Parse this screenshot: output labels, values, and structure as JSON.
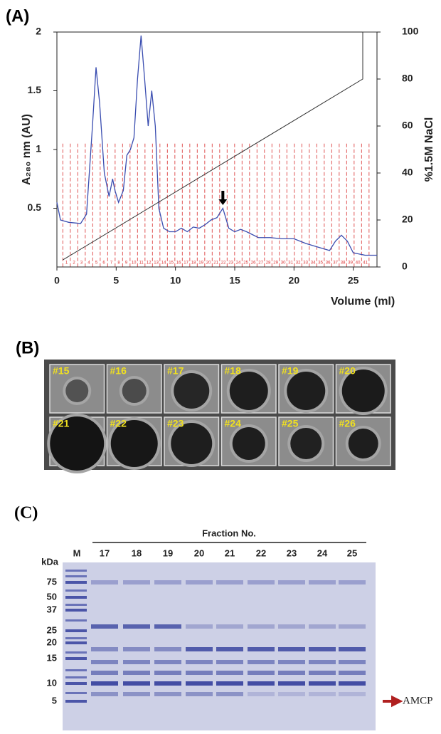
{
  "chart_data": {
    "type": "line",
    "panel_label": "(A)",
    "xlabel": "Volume (ml)",
    "ylabel": "A₂₈₀ nm (AU)",
    "y2label": "%1.5M NaCl",
    "xlim": [
      0,
      27
    ],
    "xticks": [
      0,
      5,
      10,
      15,
      20,
      25
    ],
    "ylim": [
      0,
      2
    ],
    "yticks": [
      0.5,
      1,
      1.5,
      2
    ],
    "y2lim": [
      0,
      100
    ],
    "y2ticks": [
      0,
      20,
      40,
      60,
      80,
      100
    ],
    "series": [
      {
        "color": "#3a4db0",
        "x": [
          0,
          0.3,
          1,
          2,
          2.5,
          3,
          3.3,
          3.6,
          4,
          4.4,
          4.7,
          4.9,
          5.2,
          5.6,
          5.9,
          6.2,
          6.5,
          6.8,
          7.1,
          7.4,
          7.7,
          8.0,
          8.3,
          8.6,
          9,
          9.5,
          10,
          10.5,
          11,
          11.5,
          12,
          12.5,
          13,
          13.5,
          14,
          14.5,
          15,
          15.5,
          16,
          17,
          18,
          19,
          20,
          21,
          22,
          23,
          23.5,
          24,
          24.5,
          25,
          26,
          27
        ],
        "values": [
          0.55,
          0.4,
          0.38,
          0.37,
          0.45,
          1.2,
          1.7,
          1.4,
          0.8,
          0.6,
          0.75,
          0.65,
          0.55,
          0.65,
          0.95,
          1.0,
          1.1,
          1.6,
          1.97,
          1.6,
          1.2,
          1.5,
          1.2,
          0.5,
          0.33,
          0.3,
          0.3,
          0.33,
          0.3,
          0.34,
          0.33,
          0.36,
          0.4,
          0.42,
          0.5,
          0.33,
          0.3,
          0.32,
          0.3,
          0.25,
          0.25,
          0.24,
          0.24,
          0.2,
          0.17,
          0.14,
          0.22,
          0.27,
          0.22,
          0.12,
          0.1,
          0.1
        ]
      },
      {
        "color": "#333333",
        "axis": "y2",
        "x": [
          0.5,
          25.8,
          25.8,
          27
        ],
        "values": [
          3,
          80,
          100,
          100
        ]
      }
    ],
    "fraction_bins": [
      0.5,
      1.13,
      1.76,
      2.39,
      3.02,
      3.65,
      4.28,
      4.91,
      5.54,
      6.17,
      6.8,
      7.43,
      8.06,
      8.69,
      9.32,
      9.95,
      10.58,
      11.21,
      11.84,
      12.47,
      13.1,
      13.73,
      14.36,
      14.99,
      15.62,
      16.25,
      16.88,
      17.51,
      18.14,
      18.77,
      19.4,
      20.03,
      20.66,
      21.29,
      21.92,
      22.55,
      23.18,
      23.81,
      24.44,
      25.07,
      25.7,
      26.33
    ],
    "fraction_labels": [
      "1",
      "2",
      "3",
      "4",
      "5",
      "6",
      "7",
      "8",
      "9",
      "10",
      "11",
      "12",
      "13",
      "14",
      "15",
      "16",
      "17",
      "18",
      "19",
      "20",
      "21",
      "22",
      "23",
      "24",
      "25",
      "26",
      "27",
      "28",
      "29",
      "30",
      "31",
      "32",
      "33",
      "34",
      "35",
      "36",
      "37",
      "38",
      "39",
      "40",
      "41"
    ],
    "arrow_x": 14
  },
  "plate": {
    "panel_label": "(B)",
    "wells": [
      "#15",
      "#16",
      "#17",
      "#18",
      "#19",
      "#20",
      "#21",
      "#22",
      "#23",
      "#24",
      "#25",
      "#26"
    ]
  },
  "gel": {
    "panel_label": "(C)",
    "title": "Fraction No.",
    "unit": "kDa",
    "lanes": [
      "M",
      "17",
      "18",
      "19",
      "20",
      "21",
      "22",
      "23",
      "24",
      "25"
    ],
    "markers": [
      "75",
      "50",
      "37",
      "25",
      "20",
      "15",
      "10",
      "5"
    ],
    "target": "AMCP"
  }
}
